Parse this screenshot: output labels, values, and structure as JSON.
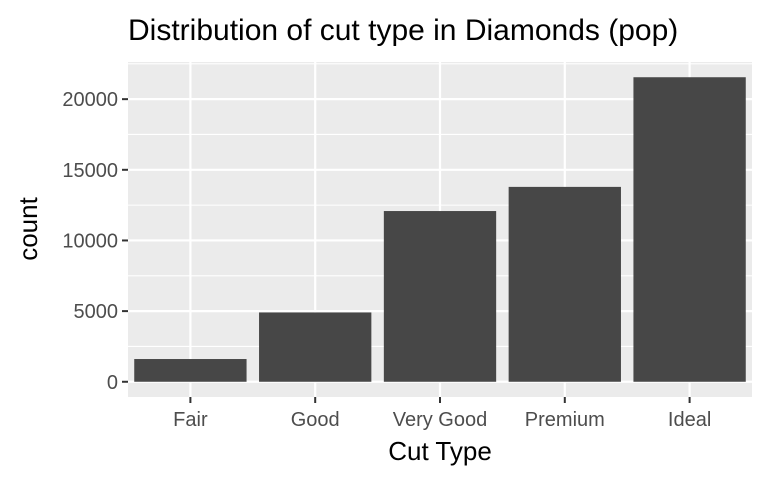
{
  "chart_data": {
    "type": "bar",
    "title": "Distribution of cut type in Diamonds (pop)",
    "xlabel": "Cut Type",
    "ylabel": "count",
    "categories": [
      "Fair",
      "Good",
      "Very Good",
      "Premium",
      "Ideal"
    ],
    "values": [
      1610,
      4906,
      12082,
      13791,
      21551
    ],
    "ylim": [
      -1078,
      22629
    ],
    "yticks": [
      0,
      5000,
      10000,
      15000,
      20000
    ],
    "grid": true,
    "legend": "none",
    "colors": {
      "bar": "#474747",
      "panel": "#ebebeb",
      "grid_major": "#ffffff",
      "tick": "#333333",
      "tick_label": "#4d4d4d"
    }
  }
}
